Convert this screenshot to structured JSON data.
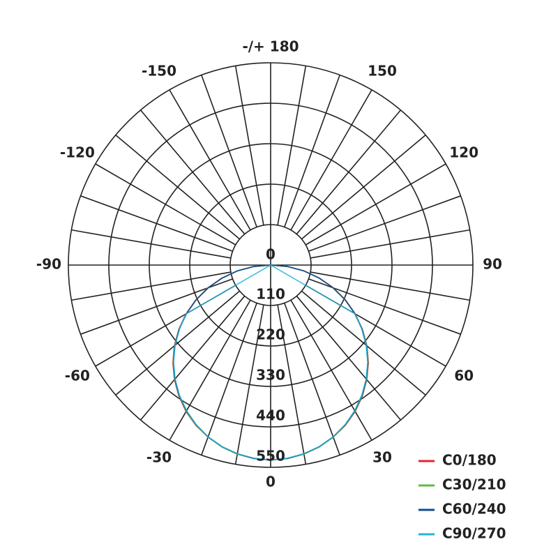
{
  "chart_data": {
    "type": "polar",
    "title": "",
    "angle_tick_labels": [
      {
        "angle": 0,
        "label": "0"
      },
      {
        "angle": 30,
        "label": "30"
      },
      {
        "angle": 60,
        "label": "60"
      },
      {
        "angle": 90,
        "label": "90"
      },
      {
        "angle": 120,
        "label": "120"
      },
      {
        "angle": 150,
        "label": "150"
      },
      {
        "angle": 180,
        "label": "-/+ 180"
      },
      {
        "angle": -150,
        "label": "-150"
      },
      {
        "angle": -120,
        "label": "-120"
      },
      {
        "angle": -90,
        "label": "-90"
      },
      {
        "angle": -60,
        "label": "-60"
      },
      {
        "angle": -30,
        "label": "-30"
      }
    ],
    "radial_tick_labels": [
      "0",
      "110",
      "220",
      "330",
      "440",
      "550"
    ],
    "radial_range": [
      0,
      550
    ],
    "angle_grid_step": 10,
    "grid": true,
    "legend_position": "bottom-right",
    "angles": [
      0,
      5,
      10,
      15,
      20,
      25,
      30,
      35,
      40,
      45,
      50,
      55,
      60,
      65,
      70,
      75,
      80,
      85,
      90
    ],
    "series": [
      {
        "name": "C0/180",
        "color": "#e3262d",
        "values": [
          530,
          528,
          522,
          512,
          498,
          481,
          460,
          435,
          407,
          376,
          342,
          305,
          266,
          225,
          182,
          138,
          93,
          47,
          0
        ]
      },
      {
        "name": "C30/210",
        "color": "#5cb946",
        "values": [
          530,
          528,
          522,
          512,
          498,
          480,
          459,
          434,
          406,
          375,
          341,
          304,
          265,
          224,
          181,
          137,
          92,
          46,
          0
        ]
      },
      {
        "name": "C60/240",
        "color": "#0f4c92",
        "values": [
          530,
          528,
          521,
          511,
          497,
          479,
          458,
          433,
          405,
          374,
          340,
          303,
          264,
          223,
          180,
          136,
          91,
          46,
          0
        ]
      },
      {
        "name": "C90/270",
        "color": "#22b4d8",
        "values": [
          530,
          527,
          521,
          511,
          497,
          479,
          457,
          432,
          404,
          373,
          339,
          302,
          266,
          null,
          null,
          null,
          null,
          null,
          0
        ]
      }
    ]
  }
}
